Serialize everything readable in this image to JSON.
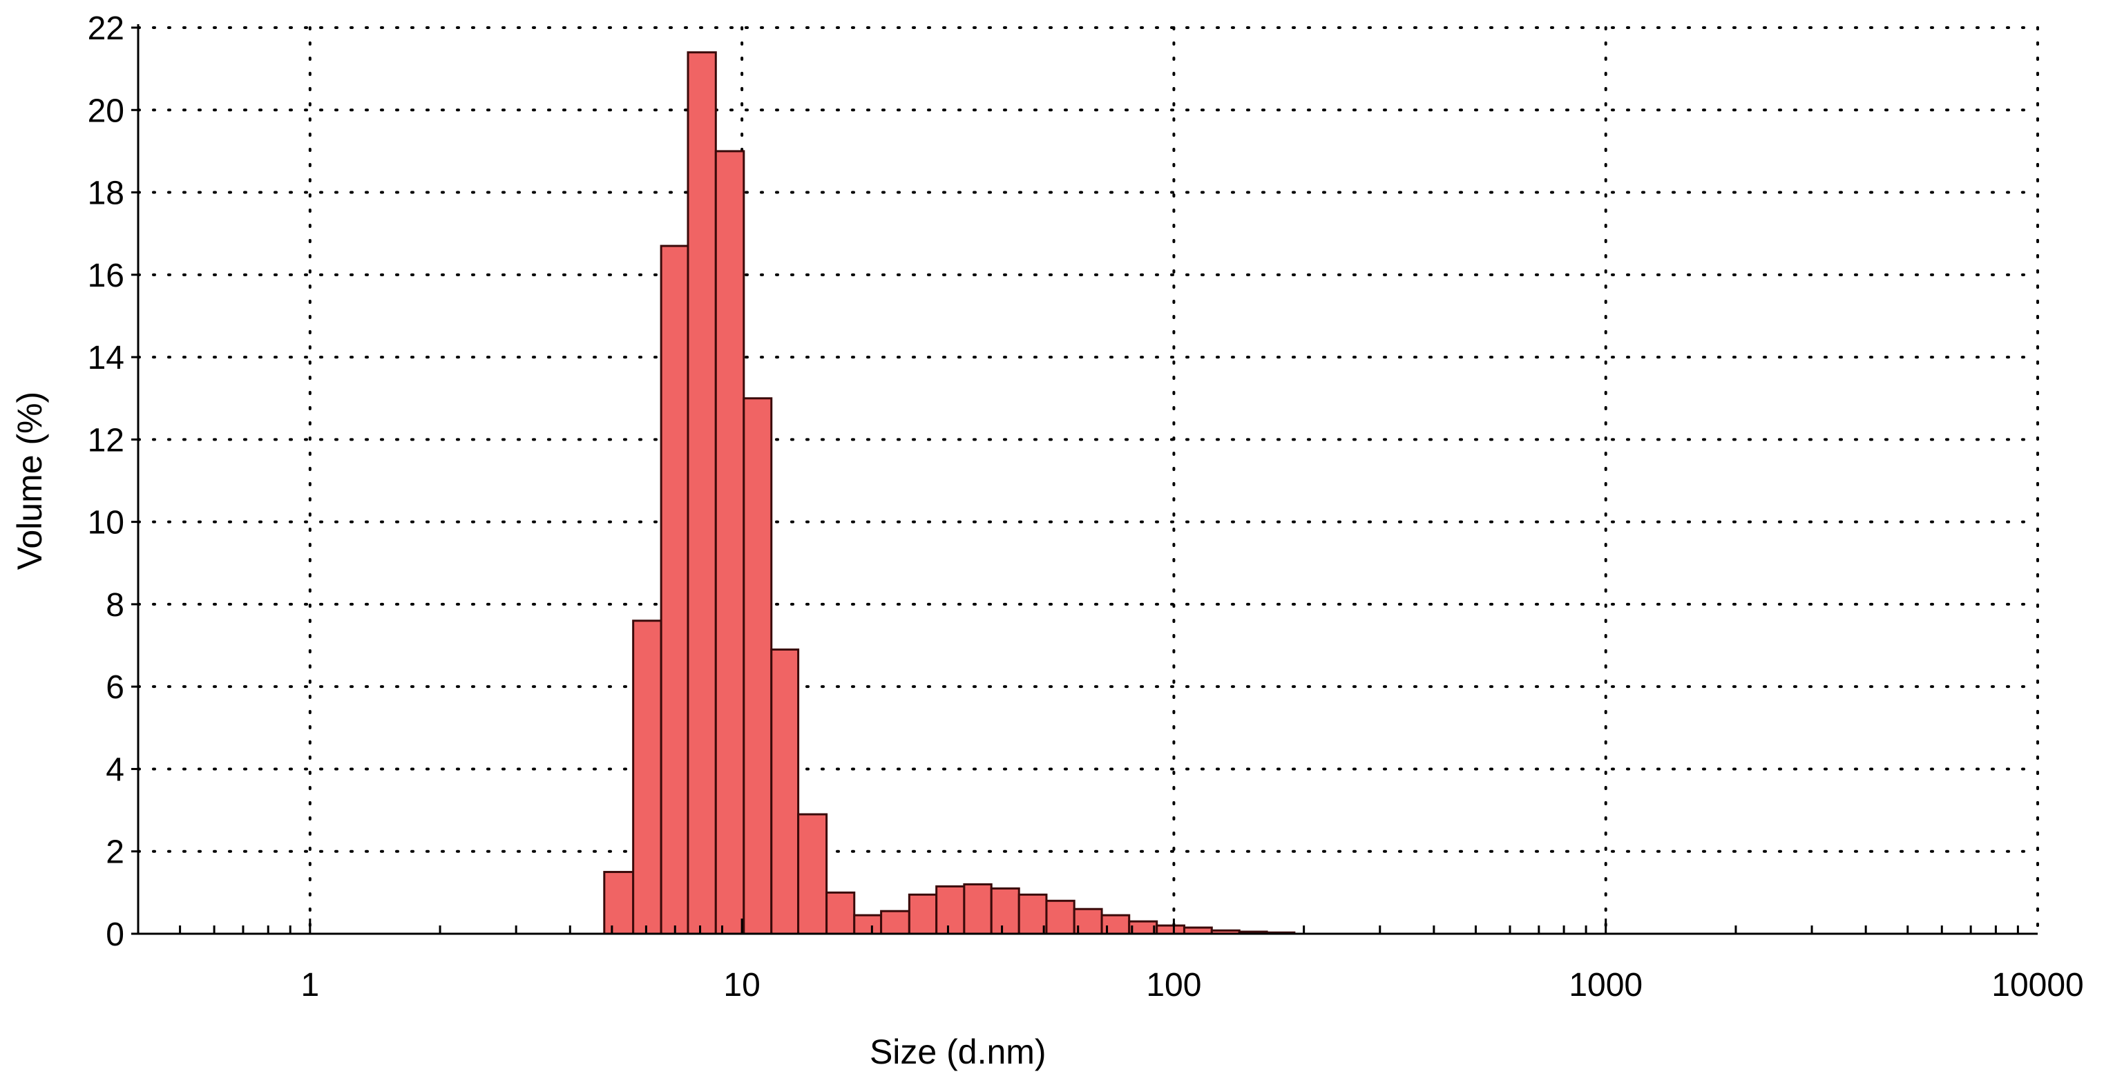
{
  "chart_data": {
    "type": "bar",
    "title": "",
    "xlabel": "Size (d.nm)",
    "ylabel": "Volume (%)",
    "x_scale": "log",
    "xlim": [
      0.4,
      10000
    ],
    "ylim": [
      0,
      22
    ],
    "x_ticks": [
      {
        "value": 1,
        "label": "1"
      },
      {
        "value": 10,
        "label": "10"
      },
      {
        "value": 100,
        "label": "100"
      },
      {
        "value": 1000,
        "label": "1000"
      },
      {
        "value": 10000,
        "label": "10000"
      }
    ],
    "y_ticks": [
      {
        "value": 0,
        "label": "0"
      },
      {
        "value": 2,
        "label": "2"
      },
      {
        "value": 4,
        "label": "4"
      },
      {
        "value": 6,
        "label": "6"
      },
      {
        "value": 8,
        "label": "8"
      },
      {
        "value": 10,
        "label": "10"
      },
      {
        "value": 12,
        "label": "12"
      },
      {
        "value": 14,
        "label": "14"
      },
      {
        "value": 16,
        "label": "16"
      },
      {
        "value": 18,
        "label": "18"
      },
      {
        "value": 20,
        "label": "20"
      },
      {
        "value": 22,
        "label": "22"
      }
    ],
    "grid": true,
    "bar_color": "#f06464",
    "bar_edge_color": "#3a0a0a",
    "bins": [
      {
        "from": 4.8,
        "to": 5.6,
        "value": 1.5
      },
      {
        "from": 5.6,
        "to": 6.5,
        "value": 7.6
      },
      {
        "from": 6.5,
        "to": 7.5,
        "value": 16.7
      },
      {
        "from": 7.5,
        "to": 8.7,
        "value": 21.4
      },
      {
        "from": 8.7,
        "to": 10.1,
        "value": 19.0
      },
      {
        "from": 10.1,
        "to": 11.7,
        "value": 13.0
      },
      {
        "from": 11.7,
        "to": 13.5,
        "value": 6.9
      },
      {
        "from": 13.5,
        "to": 15.7,
        "value": 2.9
      },
      {
        "from": 15.7,
        "to": 18.2,
        "value": 1.0
      },
      {
        "from": 18.2,
        "to": 21.0,
        "value": 0.45
      },
      {
        "from": 21.0,
        "to": 24.4,
        "value": 0.55
      },
      {
        "from": 24.4,
        "to": 28.2,
        "value": 0.95
      },
      {
        "from": 28.2,
        "to": 32.7,
        "value": 1.15
      },
      {
        "from": 32.7,
        "to": 37.8,
        "value": 1.2
      },
      {
        "from": 37.8,
        "to": 43.8,
        "value": 1.1
      },
      {
        "from": 43.8,
        "to": 50.7,
        "value": 0.95
      },
      {
        "from": 50.7,
        "to": 58.8,
        "value": 0.8
      },
      {
        "from": 58.8,
        "to": 68.1,
        "value": 0.6
      },
      {
        "from": 68.1,
        "to": 78.8,
        "value": 0.45
      },
      {
        "from": 78.8,
        "to": 91.3,
        "value": 0.3
      },
      {
        "from": 91.3,
        "to": 105.7,
        "value": 0.2
      },
      {
        "from": 105.7,
        "to": 122.4,
        "value": 0.15
      },
      {
        "from": 122.4,
        "to": 141.8,
        "value": 0.08
      },
      {
        "from": 141.8,
        "to": 164.2,
        "value": 0.05
      },
      {
        "from": 164.2,
        "to": 190.1,
        "value": 0.03
      }
    ]
  }
}
